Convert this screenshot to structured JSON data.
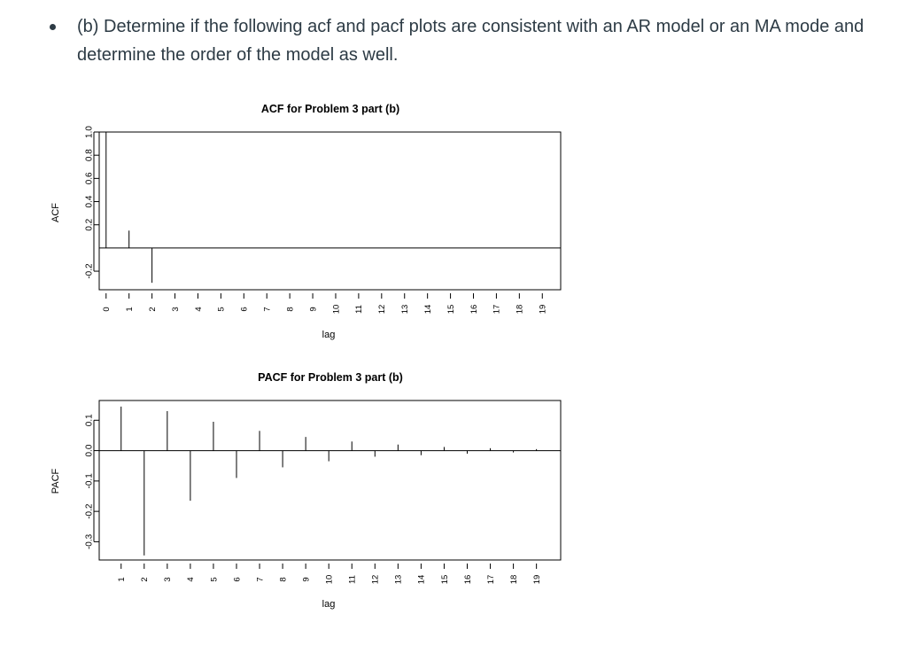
{
  "question": {
    "text": "(b) Determine if the following acf and pacf plots are consistent with an AR model or an MA mode and determine the order of the model as well."
  },
  "chart_data": [
    {
      "type": "bar",
      "title": "ACF for Problem 3 part (b)",
      "xlabel": "lag",
      "ylabel": "ACF",
      "x": [
        0,
        1,
        2,
        3,
        4,
        5,
        6,
        7,
        8,
        9,
        10,
        11,
        12,
        13,
        14,
        15,
        16,
        17,
        18,
        19
      ],
      "values": [
        1.0,
        0.15,
        -0.3,
        0,
        0,
        0,
        0,
        0,
        0,
        0,
        0,
        0,
        0,
        0,
        0,
        0,
        0,
        0,
        0,
        0
      ],
      "xlim": [
        -0.3,
        19.8
      ],
      "ylim": [
        -0.36,
        1.0
      ],
      "yticks": [
        -0.2,
        0.2,
        0.4,
        0.6,
        0.8,
        1.0
      ],
      "xticks": [
        "0",
        "1",
        "2",
        "3",
        "4",
        "5",
        "6",
        "7",
        "8",
        "9",
        "10",
        "11",
        "12",
        "13",
        "14",
        "15",
        "16",
        "17",
        "18",
        "19"
      ],
      "zero_line": true
    },
    {
      "type": "bar",
      "title": "PACF for Problem 3 part (b)",
      "xlabel": "lag",
      "ylabel": "PACF",
      "x": [
        1,
        2,
        3,
        4,
        5,
        6,
        7,
        8,
        9,
        10,
        11,
        12,
        13,
        14,
        15,
        16,
        17,
        18,
        19
      ],
      "values": [
        0.145,
        -0.345,
        0.13,
        -0.165,
        0.095,
        -0.09,
        0.065,
        -0.055,
        0.045,
        -0.035,
        0.03,
        -0.02,
        0.02,
        -0.015,
        0.012,
        -0.01,
        0.008,
        -0.006,
        0.005
      ],
      "xlim": [
        0.05,
        20.05
      ],
      "ylim": [
        -0.36,
        0.165
      ],
      "yticks": [
        -0.3,
        -0.2,
        -0.1,
        0.0,
        0.1
      ],
      "xticks": [
        "1",
        "2",
        "3",
        "4",
        "5",
        "6",
        "7",
        "8",
        "9",
        "10",
        "11",
        "12",
        "13",
        "14",
        "15",
        "16",
        "17",
        "18",
        "19"
      ],
      "zero_line": true
    }
  ]
}
